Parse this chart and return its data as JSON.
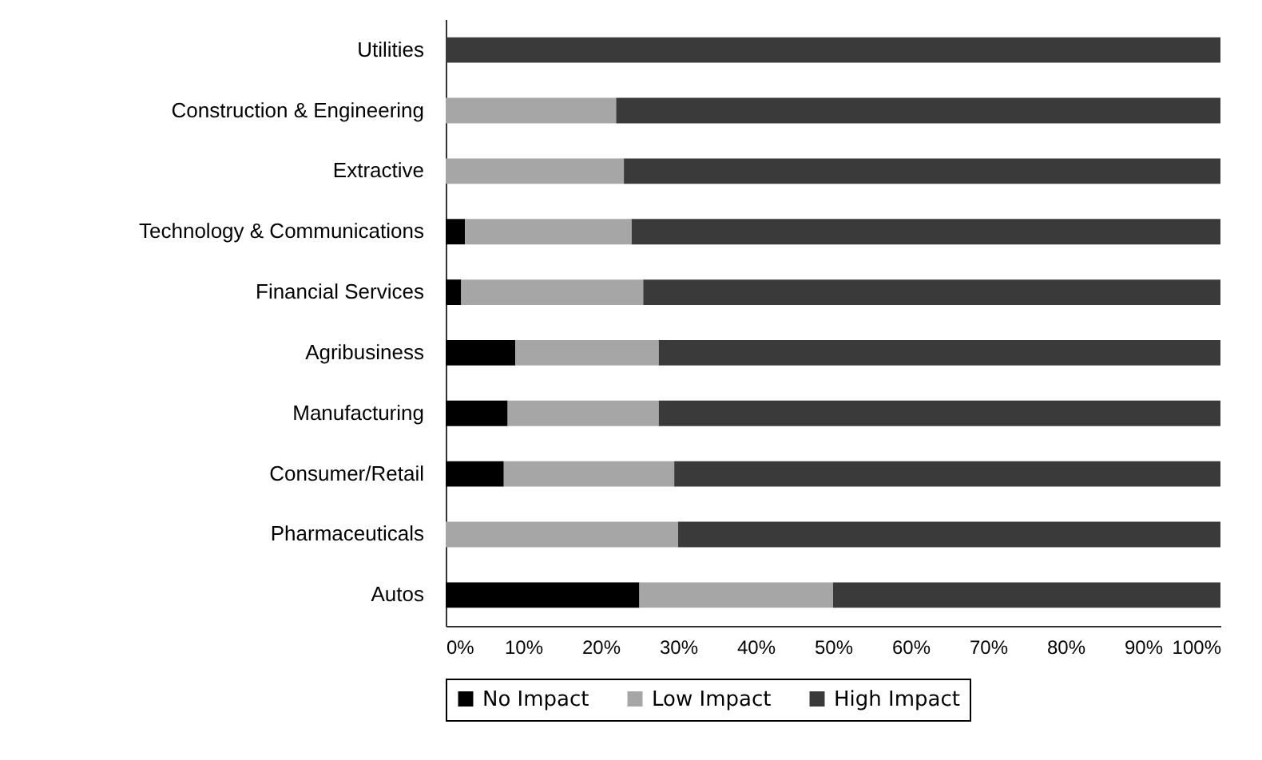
{
  "chart_data": {
    "type": "bar",
    "orientation": "horizontal",
    "stacked": true,
    "categories": [
      "Utilities",
      "Construction & Engineering",
      "Extractive",
      "Technology & Communications",
      "Financial Services",
      "Agribusiness",
      "Manufacturing",
      "Consumer/Retail",
      "Pharmaceuticals",
      "Autos"
    ],
    "series": [
      {
        "name": "No Impact",
        "color": "#000000",
        "values": [
          0,
          0,
          0,
          2.5,
          2,
          9,
          8,
          7.5,
          0,
          25
        ]
      },
      {
        "name": "Low Impact",
        "color": "#a6a6a6",
        "values": [
          0,
          22,
          23,
          21.5,
          23.5,
          18.5,
          19.5,
          22,
          30,
          25
        ]
      },
      {
        "name": "High Impact",
        "color": "#3a3a3a",
        "values": [
          100,
          78,
          77,
          76,
          74.5,
          72.5,
          72.5,
          70.5,
          70,
          50
        ]
      }
    ],
    "xlim": [
      0,
      100
    ],
    "xticks": [
      {
        "value": 0,
        "label": "0%"
      },
      {
        "value": 10,
        "label": "10%"
      },
      {
        "value": 20,
        "label": "20%"
      },
      {
        "value": 30,
        "label": "30%"
      },
      {
        "value": 40,
        "label": "40%"
      },
      {
        "value": 50,
        "label": "50%"
      },
      {
        "value": 60,
        "label": "60%"
      },
      {
        "value": 70,
        "label": "70%"
      },
      {
        "value": 80,
        "label": "80%"
      },
      {
        "value": 90,
        "label": "90%"
      },
      {
        "value": 100,
        "label": "100%"
      }
    ],
    "grid": false,
    "legend": "bottom"
  }
}
